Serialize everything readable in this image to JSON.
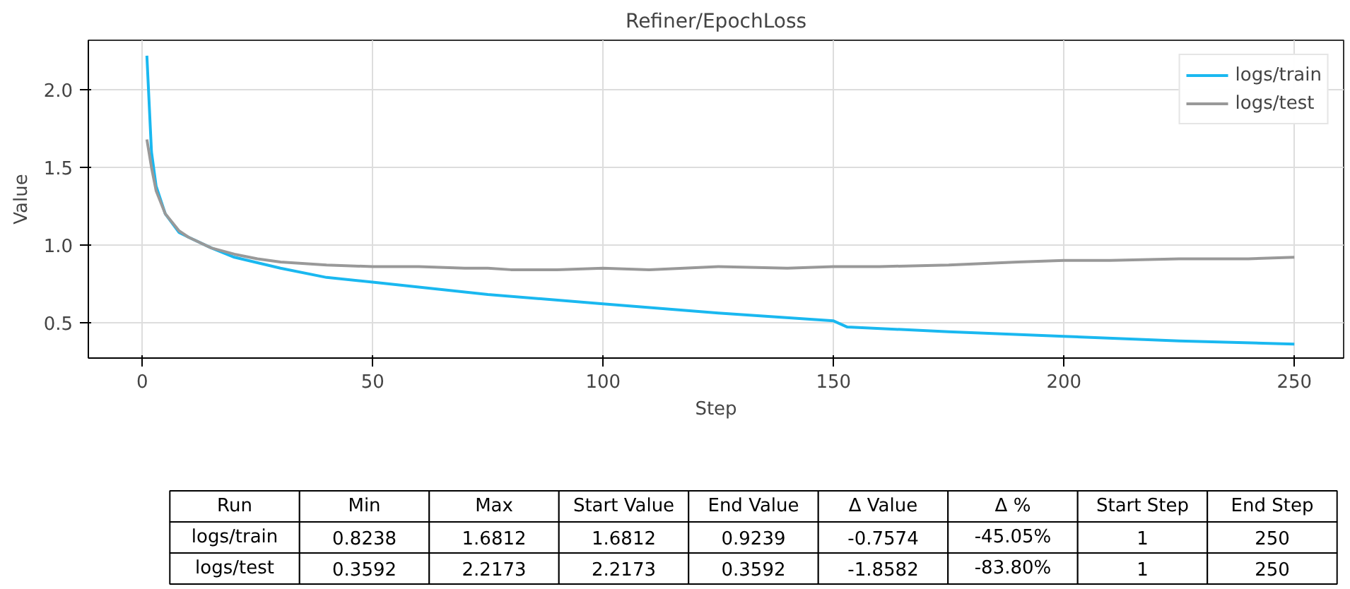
{
  "chart_data": [
    {
      "type": "line",
      "title": "Refiner/EpochLoss",
      "xlabel": "Step",
      "ylabel": "Value",
      "xlim": [
        -11.7,
        260.7
      ],
      "ylim": [
        0.27,
        2.32
      ],
      "xticks": [
        0,
        50,
        100,
        150,
        200,
        250
      ],
      "yticks": [
        {
          "value": 0.5,
          "label": "0.5"
        },
        {
          "value": 1.0,
          "label": "1.0"
        },
        {
          "value": 1.5,
          "label": "1.5"
        },
        {
          "value": 2.0,
          "label": "2.0"
        }
      ],
      "grid": true,
      "legend": "top right",
      "line_style": "solid",
      "marker": "none",
      "series": [
        {
          "name": "logs/train",
          "color": "#1ab8f0",
          "x": [
            1,
            2,
            3,
            5,
            8,
            10,
            15,
            20,
            30,
            40,
            50,
            75,
            100,
            125,
            150,
            153,
            175,
            200,
            225,
            250
          ],
          "values": [
            2.22,
            1.6,
            1.38,
            1.2,
            1.08,
            1.05,
            0.98,
            0.92,
            0.85,
            0.79,
            0.76,
            0.68,
            0.62,
            0.56,
            0.51,
            0.47,
            0.44,
            0.41,
            0.38,
            0.36
          ]
        },
        {
          "name": "logs/test",
          "color": "#999999",
          "x": [
            1,
            2,
            3,
            5,
            8,
            10,
            15,
            20,
            25,
            30,
            40,
            50,
            60,
            70,
            75,
            80,
            90,
            100,
            110,
            125,
            140,
            150,
            160,
            175,
            190,
            200,
            210,
            225,
            240,
            250
          ],
          "values": [
            1.68,
            1.5,
            1.35,
            1.2,
            1.09,
            1.05,
            0.98,
            0.94,
            0.91,
            0.89,
            0.87,
            0.86,
            0.86,
            0.85,
            0.85,
            0.84,
            0.84,
            0.85,
            0.84,
            0.86,
            0.85,
            0.86,
            0.86,
            0.87,
            0.89,
            0.9,
            0.9,
            0.91,
            0.91,
            0.92
          ]
        }
      ]
    },
    {
      "type": "other",
      "categories": [
        "Run",
        "Min",
        "Max",
        "Start Value",
        "End Value",
        "Δ Value",
        "Δ %",
        "Start Step",
        "End Step"
      ],
      "annotations": [
        "logs/train",
        "0.8238",
        "1.6812",
        "1.6812",
        "0.9239",
        "-0.7574",
        "-45.05%",
        "1",
        "250",
        "logs/test",
        "0.3592",
        "2.2173",
        "2.2173",
        "0.3592",
        "-1.8582",
        "-83.80%",
        "1",
        "250"
      ]
    }
  ]
}
